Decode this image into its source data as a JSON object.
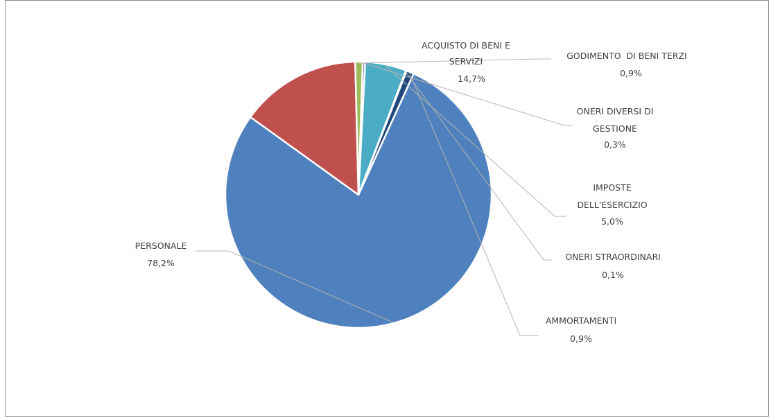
{
  "chart_data": {
    "type": "pie",
    "title": "",
    "slices": [
      {
        "label": "PERSONALE",
        "value_text": "78,2%",
        "value": 78.2,
        "color": "#4e81bd"
      },
      {
        "label": "ACQUISTO DI BENI E SERVIZI",
        "value_text": "14,7%",
        "value": 14.7,
        "color": "#c0504d"
      },
      {
        "label": "GODIMENTO  DI BENI TERZI",
        "value_text": "0,9%",
        "value": 0.9,
        "color": "#9bbb59"
      },
      {
        "label": "ONERI DIVERSI DI GESTIONE",
        "value_text": "0,3%",
        "value": 0.3,
        "color": "#8064a2"
      },
      {
        "label": "IMPOSTE DELL'ESERCIZIO",
        "value_text": "5,0%",
        "value": 5.0,
        "color": "#4bacc6"
      },
      {
        "label": "ONERI STRAORDINARI",
        "value_text": "0,1%",
        "value": 0.1,
        "color": "#f79646"
      },
      {
        "label": "AMMORTAMENTI",
        "value_text": "0,9%",
        "value": 0.9,
        "color": "#1f497d"
      }
    ],
    "data_labels": "outside with leader lines",
    "legend": "none"
  }
}
